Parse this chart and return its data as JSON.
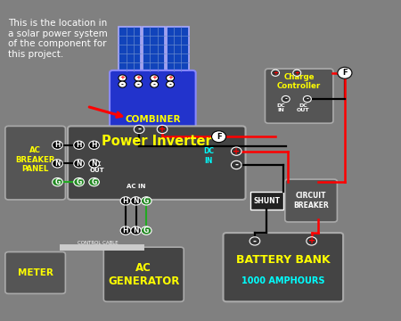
{
  "background_color": "#808080",
  "title_text": "This is the location in\na solar power system\nof the component for\nthis project.",
  "title_color": "#ffffff",
  "title_fontsize": 7.5,
  "combiner_label": "COMBINER",
  "combiner_color": "#2233cc",
  "panel_color": "#1144bb",
  "charge_ctrl_label": "Charge\nController",
  "inverter_label": "Power Inverter",
  "ac_breaker_label": "AC\nBREAKER\nPANEL",
  "meter_label": "METER",
  "ac_gen_label": "AC\nGENERATOR",
  "battery_label": "BATTERY BANK",
  "battery_sub": "1000 AMPHOURS",
  "shunt_label": "SHUNT",
  "circuit_breaker_label": "CIRCUIT\nBREAKER",
  "yellow": "#ffff00",
  "cyan": "#00ffff",
  "white": "#ffffff",
  "red": "#ff0000",
  "dark_box": "#444444",
  "med_box": "#555555",
  "dark2": "#333333"
}
